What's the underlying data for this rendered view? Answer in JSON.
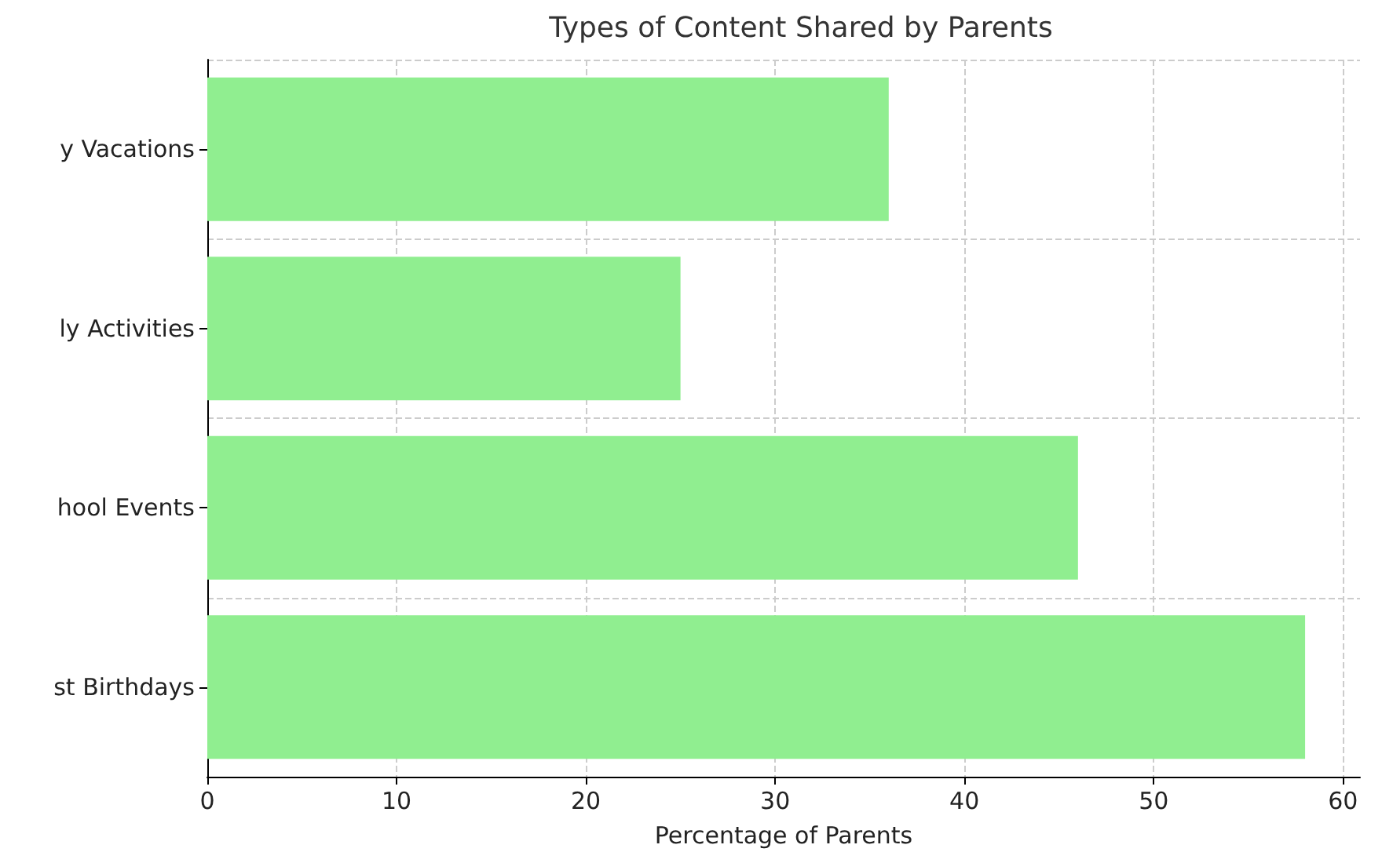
{
  "chart_data": {
    "type": "bar",
    "orientation": "horizontal",
    "title": "Types of Content Shared by Parents",
    "xlabel": "Percentage of Parents",
    "categories": [
      "y Vacations",
      "ly Activities",
      "hool Events",
      "st Birthdays"
    ],
    "values": [
      36,
      25,
      46,
      58
    ],
    "color": "#90ee90",
    "xlim": [
      0,
      60.9
    ],
    "xticks": [
      0,
      10,
      20,
      30,
      40,
      50,
      60
    ],
    "grid": true
  }
}
